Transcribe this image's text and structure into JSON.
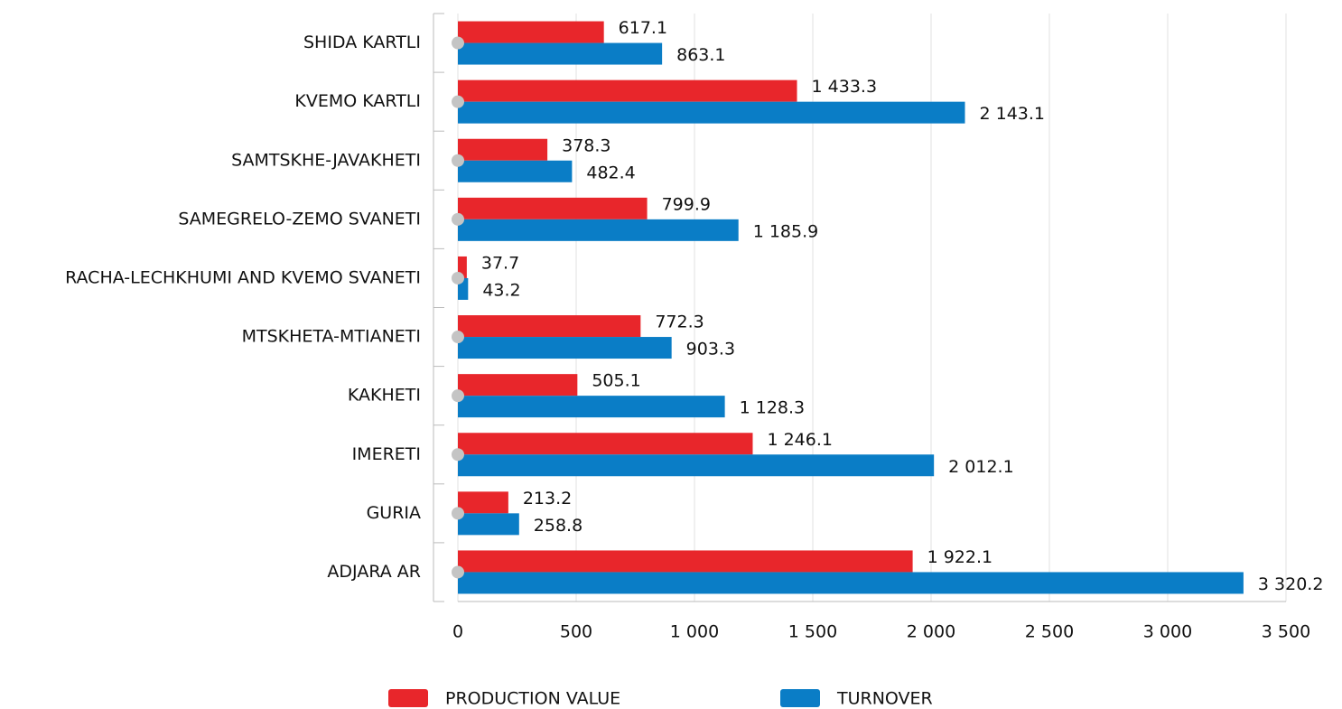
{
  "chart_data": {
    "type": "bar",
    "orientation": "horizontal",
    "categories": [
      "SHIDA KARTLI",
      "KVEMO KARTLI",
      "SAMTSKHE-JAVAKHETI",
      "SAMEGRELO-ZEMO SVANETI",
      "RACHA-LECHKHUMI AND KVEMO SVANETI",
      "MTSKHETA-MTIANETI",
      "KAKHETI",
      "IMERETI",
      "GURIA",
      "ADJARA AR"
    ],
    "series": [
      {
        "name": "PRODUCTION VALUE",
        "color": "#e8262b",
        "values": [
          617.1,
          1433.3,
          378.3,
          799.9,
          37.7,
          772.3,
          505.1,
          1246.1,
          213.2,
          1922.1
        ],
        "value_labels": [
          "617.1",
          "1 433.3",
          "378.3",
          "799.9",
          "37.7",
          "772.3",
          "505.1",
          "1 246.1",
          "213.2",
          "1 922.1"
        ]
      },
      {
        "name": "TURNOVER",
        "color": "#0a7dc6",
        "values": [
          863.1,
          2143.1,
          482.4,
          1185.9,
          43.2,
          903.3,
          1128.3,
          2012.1,
          258.8,
          3320.2
        ],
        "value_labels": [
          "863.1",
          "2 143.1",
          "482.4",
          "1 185.9",
          "43.2",
          "903.3",
          "1 128.3",
          "2 012.1",
          "258.8",
          "3 320.2"
        ]
      }
    ],
    "xlim": [
      0,
      3500
    ],
    "xticks": [
      0,
      500,
      {
        "value": 1000,
        "label": "1 000"
      },
      {
        "value": 1500,
        "label": "1 500"
      },
      {
        "value": 2000,
        "label": "2 000"
      },
      {
        "value": 2500,
        "label": "2 500"
      },
      {
        "value": 3000,
        "label": "3 000"
      },
      {
        "value": 3500,
        "label": "3 500"
      }
    ],
    "grid": true,
    "legend": "bottom"
  }
}
